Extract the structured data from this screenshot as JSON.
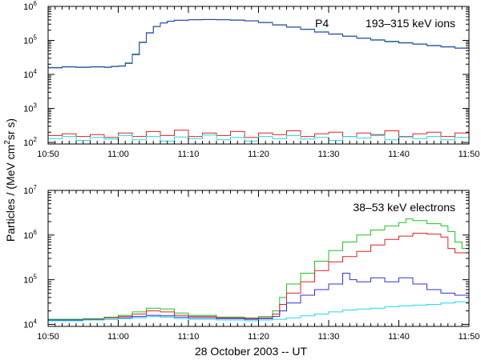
{
  "figure": {
    "ylabel_prefix": "Particles / (MeV cm",
    "ylabel_sup": "2",
    "ylabel_suffix": "sr s)",
    "xlabel": "28 October 2003  --  UT"
  },
  "colors": {
    "axis": "#000000",
    "red": "#e02020",
    "green": "#20c020",
    "blue": "#3030d0",
    "cyan": "#20d8e8"
  },
  "chart_data": [
    {
      "type": "line",
      "step": true,
      "y_scale": "log",
      "x_unit": "minutes since 10:50 UT",
      "xlim": [
        0,
        60
      ],
      "ylim": [
        90,
        1000000
      ],
      "x_ticks": [
        "10:50",
        "11:00",
        "11:10",
        "11:20",
        "11:30",
        "11:40",
        "11:50"
      ],
      "y_ticks": [
        {
          "value": 100,
          "base": "10",
          "exp": "2"
        },
        {
          "value": 1000,
          "base": "10",
          "exp": "3"
        },
        {
          "value": 10000,
          "base": "10",
          "exp": "4"
        },
        {
          "value": 100000,
          "base": "10",
          "exp": "5"
        },
        {
          "value": 1000000,
          "base": "10",
          "exp": "6"
        }
      ],
      "annotation_channel": "P4",
      "annotation_range": "193–315 keV ions",
      "series": [
        {
          "color": "green",
          "points": [
            [
              0,
              16000
            ],
            [
              2,
              17000
            ],
            [
              4,
              16500
            ],
            [
              6,
              17000
            ],
            [
              8,
              16500
            ],
            [
              9,
              17500
            ],
            [
              10,
              18000
            ],
            [
              11,
              22000
            ],
            [
              12,
              40000
            ],
            [
              13,
              90000
            ],
            [
              14,
              170000
            ],
            [
              15,
              260000
            ],
            [
              16,
              330000
            ],
            [
              17,
              370000
            ],
            [
              18,
              395000
            ],
            [
              20,
              410000
            ],
            [
              22,
              415000
            ],
            [
              24,
              410000
            ],
            [
              26,
              400000
            ],
            [
              28,
              380000
            ],
            [
              30,
              340000
            ],
            [
              32,
              290000
            ],
            [
              34,
              250000
            ],
            [
              36,
              215000
            ],
            [
              38,
              180000
            ],
            [
              40,
              155000
            ],
            [
              42,
              135000
            ],
            [
              44,
              118000
            ],
            [
              46,
              105000
            ],
            [
              48,
              95000
            ],
            [
              50,
              86000
            ],
            [
              52,
              79000
            ],
            [
              54,
              72000
            ],
            [
              56,
              66000
            ],
            [
              58,
              60000
            ],
            [
              60,
              56000
            ]
          ]
        },
        {
          "color": "blue",
          "points": [
            [
              0,
              15500
            ],
            [
              2,
              16500
            ],
            [
              4,
              16000
            ],
            [
              6,
              16500
            ],
            [
              8,
              16000
            ],
            [
              9,
              17000
            ],
            [
              10,
              17500
            ],
            [
              11,
              21000
            ],
            [
              12,
              38000
            ],
            [
              13,
              87000
            ],
            [
              14,
              165000
            ],
            [
              15,
              255000
            ],
            [
              16,
              325000
            ],
            [
              17,
              365000
            ],
            [
              18,
              390000
            ],
            [
              20,
              405000
            ],
            [
              22,
              410000
            ],
            [
              24,
              405000
            ],
            [
              26,
              395000
            ],
            [
              28,
              375000
            ],
            [
              30,
              335000
            ],
            [
              32,
              285000
            ],
            [
              34,
              245000
            ],
            [
              36,
              210000
            ],
            [
              38,
              176000
            ],
            [
              40,
              152000
            ],
            [
              42,
              132000
            ],
            [
              44,
              115000
            ],
            [
              46,
              102000
            ],
            [
              48,
              92000
            ],
            [
              50,
              84000
            ],
            [
              52,
              77000
            ],
            [
              54,
              70000
            ],
            [
              56,
              64000
            ],
            [
              58,
              59000
            ],
            [
              60,
              55000
            ]
          ]
        },
        {
          "color": "red",
          "points": [
            [
              0,
              160
            ],
            [
              2,
              180
            ],
            [
              4,
              150
            ],
            [
              6,
              170
            ],
            [
              8,
              140
            ],
            [
              10,
              190
            ],
            [
              12,
              150
            ],
            [
              14,
              210
            ],
            [
              16,
              160
            ],
            [
              18,
              230
            ],
            [
              20,
              150
            ],
            [
              22,
              190
            ],
            [
              24,
              160
            ],
            [
              26,
              210
            ],
            [
              28,
              140
            ],
            [
              30,
              190
            ],
            [
              32,
              170
            ],
            [
              34,
              220
            ],
            [
              36,
              150
            ],
            [
              38,
              180
            ],
            [
              40,
              200
            ],
            [
              42,
              150
            ],
            [
              44,
              190
            ],
            [
              46,
              170
            ],
            [
              48,
              220
            ],
            [
              50,
              150
            ],
            [
              52,
              180
            ],
            [
              54,
              200
            ],
            [
              56,
              150
            ],
            [
              58,
              190
            ],
            [
              60,
              170
            ]
          ]
        },
        {
          "color": "cyan",
          "points": [
            [
              0,
              130
            ],
            [
              2,
              150
            ],
            [
              4,
              115
            ],
            [
              6,
              140
            ],
            [
              8,
              125
            ],
            [
              10,
              160
            ],
            [
              12,
              120
            ],
            [
              14,
              150
            ],
            [
              16,
              110
            ],
            [
              18,
              145
            ],
            [
              20,
              130
            ],
            [
              22,
              165
            ],
            [
              24,
              120
            ],
            [
              26,
              140
            ],
            [
              28,
              110
            ],
            [
              30,
              150
            ],
            [
              32,
              130
            ],
            [
              34,
              160
            ],
            [
              36,
              125
            ],
            [
              38,
              140
            ],
            [
              40,
              115
            ],
            [
              42,
              150
            ],
            [
              44,
              135
            ],
            [
              46,
              160
            ],
            [
              48,
              120
            ],
            [
              50,
              145
            ],
            [
              52,
              130
            ],
            [
              54,
              150
            ],
            [
              56,
              120
            ],
            [
              58,
              140
            ],
            [
              60,
              130
            ]
          ]
        }
      ]
    },
    {
      "type": "line",
      "step": true,
      "y_scale": "log",
      "x_unit": "minutes since 10:50 UT",
      "xlim": [
        0,
        60
      ],
      "ylim": [
        9000,
        10000000
      ],
      "x_ticks": [
        "10:50",
        "11:00",
        "11:10",
        "11:20",
        "11:30",
        "11:40",
        "11:50"
      ],
      "y_ticks": [
        {
          "value": 10000,
          "base": "10",
          "exp": "4"
        },
        {
          "value": 100000,
          "base": "10",
          "exp": "5"
        },
        {
          "value": 1000000,
          "base": "10",
          "exp": "6"
        },
        {
          "value": 10000000,
          "base": "10",
          "exp": "7"
        }
      ],
      "annotation_range": "38–53 keV electrons",
      "series": [
        {
          "color": "green",
          "points": [
            [
              0,
              13000
            ],
            [
              5,
              13500
            ],
            [
              8,
              14500
            ],
            [
              10,
              16000
            ],
            [
              12,
              19000
            ],
            [
              14,
              23000
            ],
            [
              16,
              22000
            ],
            [
              18,
              18000
            ],
            [
              20,
              16000
            ],
            [
              24,
              14500
            ],
            [
              28,
              14000
            ],
            [
              30,
              15000
            ],
            [
              32,
              20000
            ],
            [
              33,
              40000
            ],
            [
              34,
              80000
            ],
            [
              36,
              140000
            ],
            [
              38,
              260000
            ],
            [
              40,
              450000
            ],
            [
              42,
              700000
            ],
            [
              44,
              1000000
            ],
            [
              46,
              1300000
            ],
            [
              48,
              1600000
            ],
            [
              50,
              1900000
            ],
            [
              51,
              2300000
            ],
            [
              52,
              2100000
            ],
            [
              54,
              1800000
            ],
            [
              56,
              1600000
            ],
            [
              57,
              1200000
            ],
            [
              58,
              700000
            ],
            [
              59,
              500000
            ],
            [
              60,
              360000
            ]
          ]
        },
        {
          "color": "red",
          "points": [
            [
              0,
              12500
            ],
            [
              5,
              13000
            ],
            [
              8,
              14000
            ],
            [
              10,
              15000
            ],
            [
              12,
              17000
            ],
            [
              14,
              20000
            ],
            [
              16,
              19000
            ],
            [
              18,
              16000
            ],
            [
              20,
              15000
            ],
            [
              24,
              14000
            ],
            [
              28,
              13500
            ],
            [
              30,
              14000
            ],
            [
              32,
              17000
            ],
            [
              33,
              28000
            ],
            [
              34,
              50000
            ],
            [
              36,
              90000
            ],
            [
              38,
              160000
            ],
            [
              40,
              250000
            ],
            [
              42,
              330000
            ],
            [
              44,
              430000
            ],
            [
              46,
              600000
            ],
            [
              48,
              800000
            ],
            [
              50,
              950000
            ],
            [
              52,
              1100000
            ],
            [
              54,
              1050000
            ],
            [
              56,
              900000
            ],
            [
              57,
              500000
            ],
            [
              58,
              400000
            ],
            [
              60,
              300000
            ]
          ]
        },
        {
          "color": "blue",
          "points": [
            [
              0,
              12500
            ],
            [
              5,
              12800
            ],
            [
              8,
              13000
            ],
            [
              10,
              14000
            ],
            [
              12,
              15000
            ],
            [
              14,
              16000
            ],
            [
              16,
              15500
            ],
            [
              18,
              14500
            ],
            [
              20,
              14000
            ],
            [
              24,
              13500
            ],
            [
              28,
              13000
            ],
            [
              30,
              13500
            ],
            [
              32,
              15000
            ],
            [
              33,
              20000
            ],
            [
              34,
              30000
            ],
            [
              36,
              45000
            ],
            [
              38,
              60000
            ],
            [
              40,
              80000
            ],
            [
              42,
              140000
            ],
            [
              43,
              100000
            ],
            [
              44,
              90000
            ],
            [
              46,
              110000
            ],
            [
              48,
              90000
            ],
            [
              50,
              110000
            ],
            [
              52,
              80000
            ],
            [
              54,
              60000
            ],
            [
              56,
              50000
            ],
            [
              58,
              45000
            ],
            [
              60,
              40000
            ]
          ]
        },
        {
          "color": "cyan",
          "points": [
            [
              0,
              12000
            ],
            [
              5,
              12500
            ],
            [
              8,
              13000
            ],
            [
              10,
              13500
            ],
            [
              12,
              14000
            ],
            [
              14,
              15000
            ],
            [
              16,
              14500
            ],
            [
              18,
              13500
            ],
            [
              20,
              13000
            ],
            [
              24,
              12500
            ],
            [
              28,
              12000
            ],
            [
              30,
              12500
            ],
            [
              32,
              13000
            ],
            [
              34,
              14000
            ],
            [
              36,
              15500
            ],
            [
              38,
              17000
            ],
            [
              40,
              19000
            ],
            [
              42,
              21000
            ],
            [
              44,
              22000
            ],
            [
              46,
              23000
            ],
            [
              48,
              25000
            ],
            [
              50,
              26000
            ],
            [
              52,
              27000
            ],
            [
              54,
              28000
            ],
            [
              56,
              30000
            ],
            [
              58,
              32000
            ],
            [
              60,
              34000
            ]
          ]
        }
      ]
    }
  ]
}
